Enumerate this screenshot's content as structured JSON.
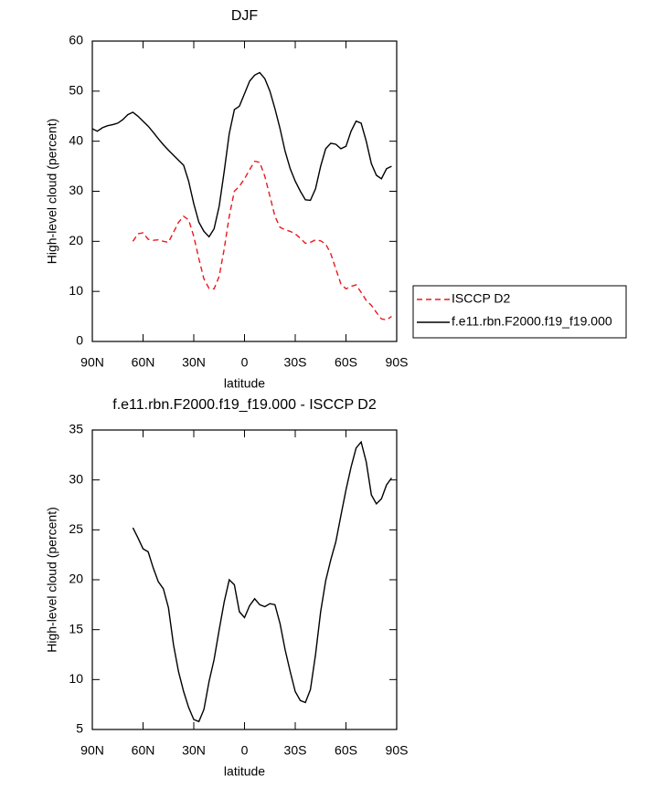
{
  "chart_data": [
    {
      "type": "line",
      "title": "DJF",
      "x_label": "latitude",
      "y_label": "High-level cloud (percent)",
      "x": [
        90,
        87,
        84,
        81,
        78,
        75,
        72,
        69,
        66,
        63,
        60,
        57,
        54,
        51,
        48,
        45,
        42,
        39,
        36,
        33,
        30,
        27,
        24,
        21,
        18,
        15,
        12,
        9,
        6,
        3,
        0,
        -3,
        -6,
        -9,
        -12,
        -15,
        -18,
        -21,
        -24,
        -27,
        -30,
        -33,
        -36,
        -39,
        -42,
        -45,
        -48,
        -51,
        -54,
        -57,
        -60,
        -63,
        -66,
        -69,
        -72,
        -75,
        -78,
        -81,
        -84,
        -87
      ],
      "xlim": [
        90,
        -90
      ],
      "xticks": [
        {
          "value": 90,
          "label": "90N"
        },
        {
          "value": 60,
          "label": "60N"
        },
        {
          "value": 30,
          "label": "30N"
        },
        0,
        {
          "value": -30,
          "label": "30S"
        },
        {
          "value": -60,
          "label": "60S"
        },
        {
          "value": -90,
          "label": "90S"
        }
      ],
      "ylim": [
        0,
        60
      ],
      "yticks": [
        0,
        10,
        20,
        30,
        40,
        50,
        60
      ],
      "legend": "right",
      "series": [
        {
          "name": "ISCCP D2",
          "color": "#e8191e",
          "linestyle": "dashed",
          "values": [
            null,
            null,
            null,
            null,
            null,
            null,
            null,
            null,
            20,
            21.5,
            21.7,
            20.4,
            20.2,
            20.3,
            20,
            19.8,
            21.8,
            23.8,
            25,
            24.3,
            21,
            16.5,
            12.5,
            10.6,
            10.5,
            13,
            18.5,
            25,
            30,
            31,
            32.5,
            34.3,
            36,
            35.8,
            33,
            29,
            25,
            22.8,
            22.3,
            22,
            21.5,
            20.6,
            19.6,
            19.8,
            20.3,
            20.1,
            19.5,
            17.5,
            14.5,
            11.5,
            10.5,
            11,
            11.3,
            9.8,
            8.2,
            7.2,
            5.8,
            4.5,
            4.3,
            5
          ]
        },
        {
          "name": "f.e11.rbn.F2000.f19_f19.000",
          "color": "#000000",
          "linestyle": "solid",
          "values": [
            42.5,
            42,
            42.7,
            43.1,
            43.3,
            43.6,
            44.3,
            45.3,
            45.8,
            45,
            44,
            43,
            41.8,
            40.5,
            39.3,
            38.2,
            37.2,
            36.2,
            35.2,
            32,
            27.5,
            23.8,
            22,
            20.9,
            22.5,
            27,
            34,
            41.5,
            46.3,
            47,
            49.5,
            52,
            53.2,
            53.7,
            52.5,
            50,
            46.5,
            42.5,
            38,
            34.5,
            32,
            30,
            28.3,
            28.2,
            30.5,
            35,
            38.5,
            39.6,
            39.4,
            38.5,
            39,
            42,
            44,
            43.6,
            40,
            35.5,
            33.2,
            32.5,
            34.5,
            35
          ]
        }
      ]
    },
    {
      "type": "line",
      "title": "f.e11.rbn.F2000.f19_f19.000 - ISCCP D2",
      "x_label": "latitude",
      "y_label": "High-level cloud (percent)",
      "x": [
        66,
        63,
        60,
        57,
        54,
        51,
        48,
        45,
        42,
        39,
        36,
        33,
        30,
        27,
        24,
        21,
        18,
        15,
        12,
        9,
        6,
        3,
        0,
        -3,
        -6,
        -9,
        -12,
        -15,
        -18,
        -21,
        -24,
        -27,
        -30,
        -33,
        -36,
        -39,
        -42,
        -45,
        -48,
        -51,
        -54,
        -57,
        -60,
        -63,
        -66,
        -69,
        -72,
        -75,
        -78,
        -81,
        -84,
        -87
      ],
      "xlim": [
        90,
        -90
      ],
      "xticks": [
        {
          "value": 90,
          "label": "90N"
        },
        {
          "value": 60,
          "label": "60N"
        },
        {
          "value": 30,
          "label": "30N"
        },
        0,
        {
          "value": -30,
          "label": "30S"
        },
        {
          "value": -60,
          "label": "60S"
        },
        {
          "value": -90,
          "label": "90S"
        }
      ],
      "ylim": [
        5,
        35
      ],
      "yticks": [
        5,
        10,
        15,
        20,
        25,
        30,
        35
      ],
      "series": [
        {
          "color": "#000000",
          "linestyle": "solid",
          "values": [
            25.2,
            24.2,
            23.1,
            22.8,
            21.2,
            19.8,
            19.1,
            17.2,
            13.5,
            10.8,
            8.8,
            7.2,
            6,
            5.8,
            7,
            9.8,
            12,
            15,
            17.8,
            20,
            19.5,
            16.8,
            16.2,
            17.4,
            18.1,
            17.5,
            17.3,
            17.6,
            17.5,
            15.6,
            13,
            10.8,
            8.8,
            7.9,
            7.7,
            9,
            12.5,
            16.8,
            19.9,
            22,
            23.8,
            26.4,
            29,
            31.3,
            33.2,
            33.8,
            31.8,
            28.5,
            27.6,
            28.1,
            29.5,
            30.2
          ]
        }
      ]
    }
  ]
}
